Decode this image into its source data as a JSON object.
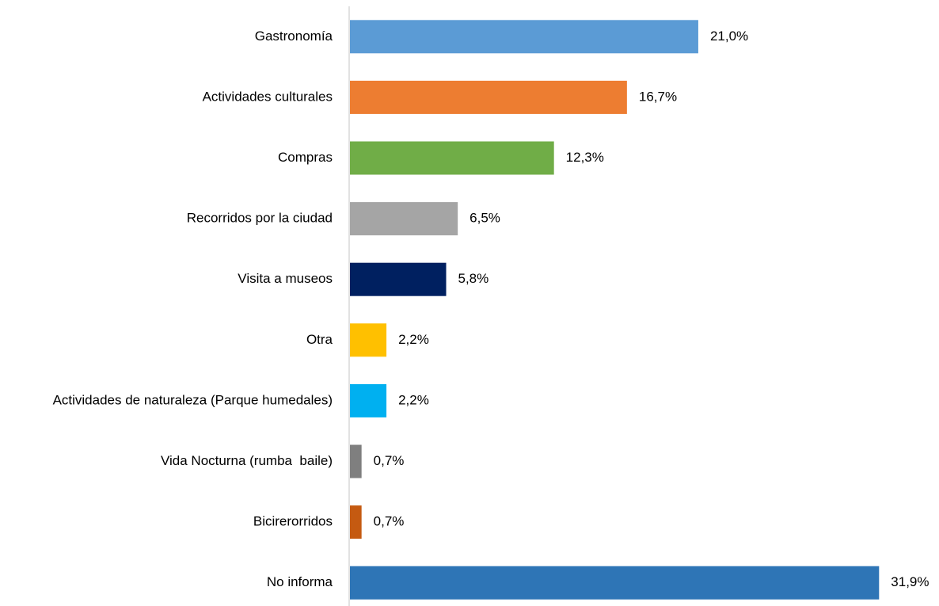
{
  "chart_data": {
    "type": "bar",
    "orientation": "horizontal",
    "categories": [
      "Gastronomía",
      "Actividades culturales",
      "Compras",
      "Recorridos por la ciudad",
      "Visita a museos",
      "Otra",
      "Actividades de naturaleza (Parque humedales)",
      "Vida Nocturna (rumba  baile)",
      "Bicirerorridos",
      "No informa"
    ],
    "values": [
      21.0,
      16.7,
      12.3,
      6.5,
      5.8,
      2.2,
      2.2,
      0.7,
      0.7,
      31.9
    ],
    "value_labels": [
      "21,0%",
      "16,7%",
      "12,3%",
      "6,5%",
      "5,8%",
      "2,2%",
      "2,2%",
      "0,7%",
      "0,7%",
      "31,9%"
    ],
    "colors": [
      "#5b9bd5",
      "#ed7d31",
      "#70ad47",
      "#a5a5a5",
      "#002060",
      "#ffc000",
      "#00b0f0",
      "#7f7f7f",
      "#c55a11",
      "#2e75b6"
    ]
  }
}
